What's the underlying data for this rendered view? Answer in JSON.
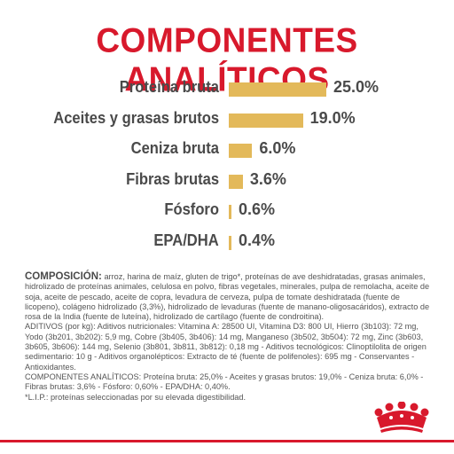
{
  "title": "COMPONENTES ANALÍTICOS",
  "chart_data": {
    "type": "bar",
    "orientation": "horizontal",
    "title": "COMPONENTES ANALÍTICOS",
    "categories": [
      "Proteína bruta",
      "Aceites y grasas brutos",
      "Ceniza bruta",
      "Fibras brutas",
      "Fósforo",
      "EPA/DHA"
    ],
    "values": [
      25.0,
      19.0,
      6.0,
      3.6,
      0.6,
      0.4
    ],
    "value_labels": [
      "25.0%",
      "19.0%",
      "6.0%",
      "3.6%",
      "0.6%",
      "0.4%"
    ],
    "xlim": [
      0,
      25
    ],
    "grid": false,
    "legend": "none",
    "bar_color": "#e3b95a"
  },
  "colors": {
    "accent": "#d8192c",
    "bar": "#e3b95a",
    "text": "#4a4a4a"
  },
  "composition": {
    "heading": "COMPOSICIÓN:",
    "text": " arroz, harina de maíz, gluten de trigo*, proteínas de ave deshidratadas, grasas animales, hidrolizado de proteínas animales, celulosa en polvo, fibras vegetales, minerales, pulpa de remolacha, aceite de soja, aceite de pescado, aceite de copra, levadura de cerveza, pulpa de tomate deshidratada (fuente de licopeno), colágeno hidrolizado (3,3%), hidrolizado de levaduras (fuente de manano-oligosacáridos), extracto de rosa de la India (fuente de luteína), hidrolizado de cartílago (fuente de condroitina).",
    "additives": "ADITIVOS (por kg): Aditivos nutricionales: Vitamina A: 28500 UI, Vitamina D3: 800 UI, Hierro (3b103): 72 mg, Yodo (3b201, 3b202): 5,9 mg, Cobre (3b405, 3b406): 14 mg, Manganeso (3b502, 3b504): 72 mg, Zinc (3b603, 3b605, 3b606): 144 mg, Selenio (3b801, 3b811, 3b812): 0,18 mg - Aditivos tecnológicos: Clinoptilolita de origen sedimentario: 10 g - Aditivos organolépticos: Extracto de té (fuente de polifenoles): 695 mg - Conservantes - Antioxidantes.",
    "analytic": "COMPONENTES ANALÍTICOS: Proteína bruta: 25,0% - Aceites y grasas brutos: 19,0% - Ceniza bruta: 6,0% - Fibras brutas: 3,6% - Fósforo: 0,60% - EPA/DHA: 0,40%.",
    "note": "*L.I.P.: proteínas seleccionadas por su elevada digestibilidad."
  },
  "logo": {
    "icon": "royal-canin-crown-icon"
  }
}
